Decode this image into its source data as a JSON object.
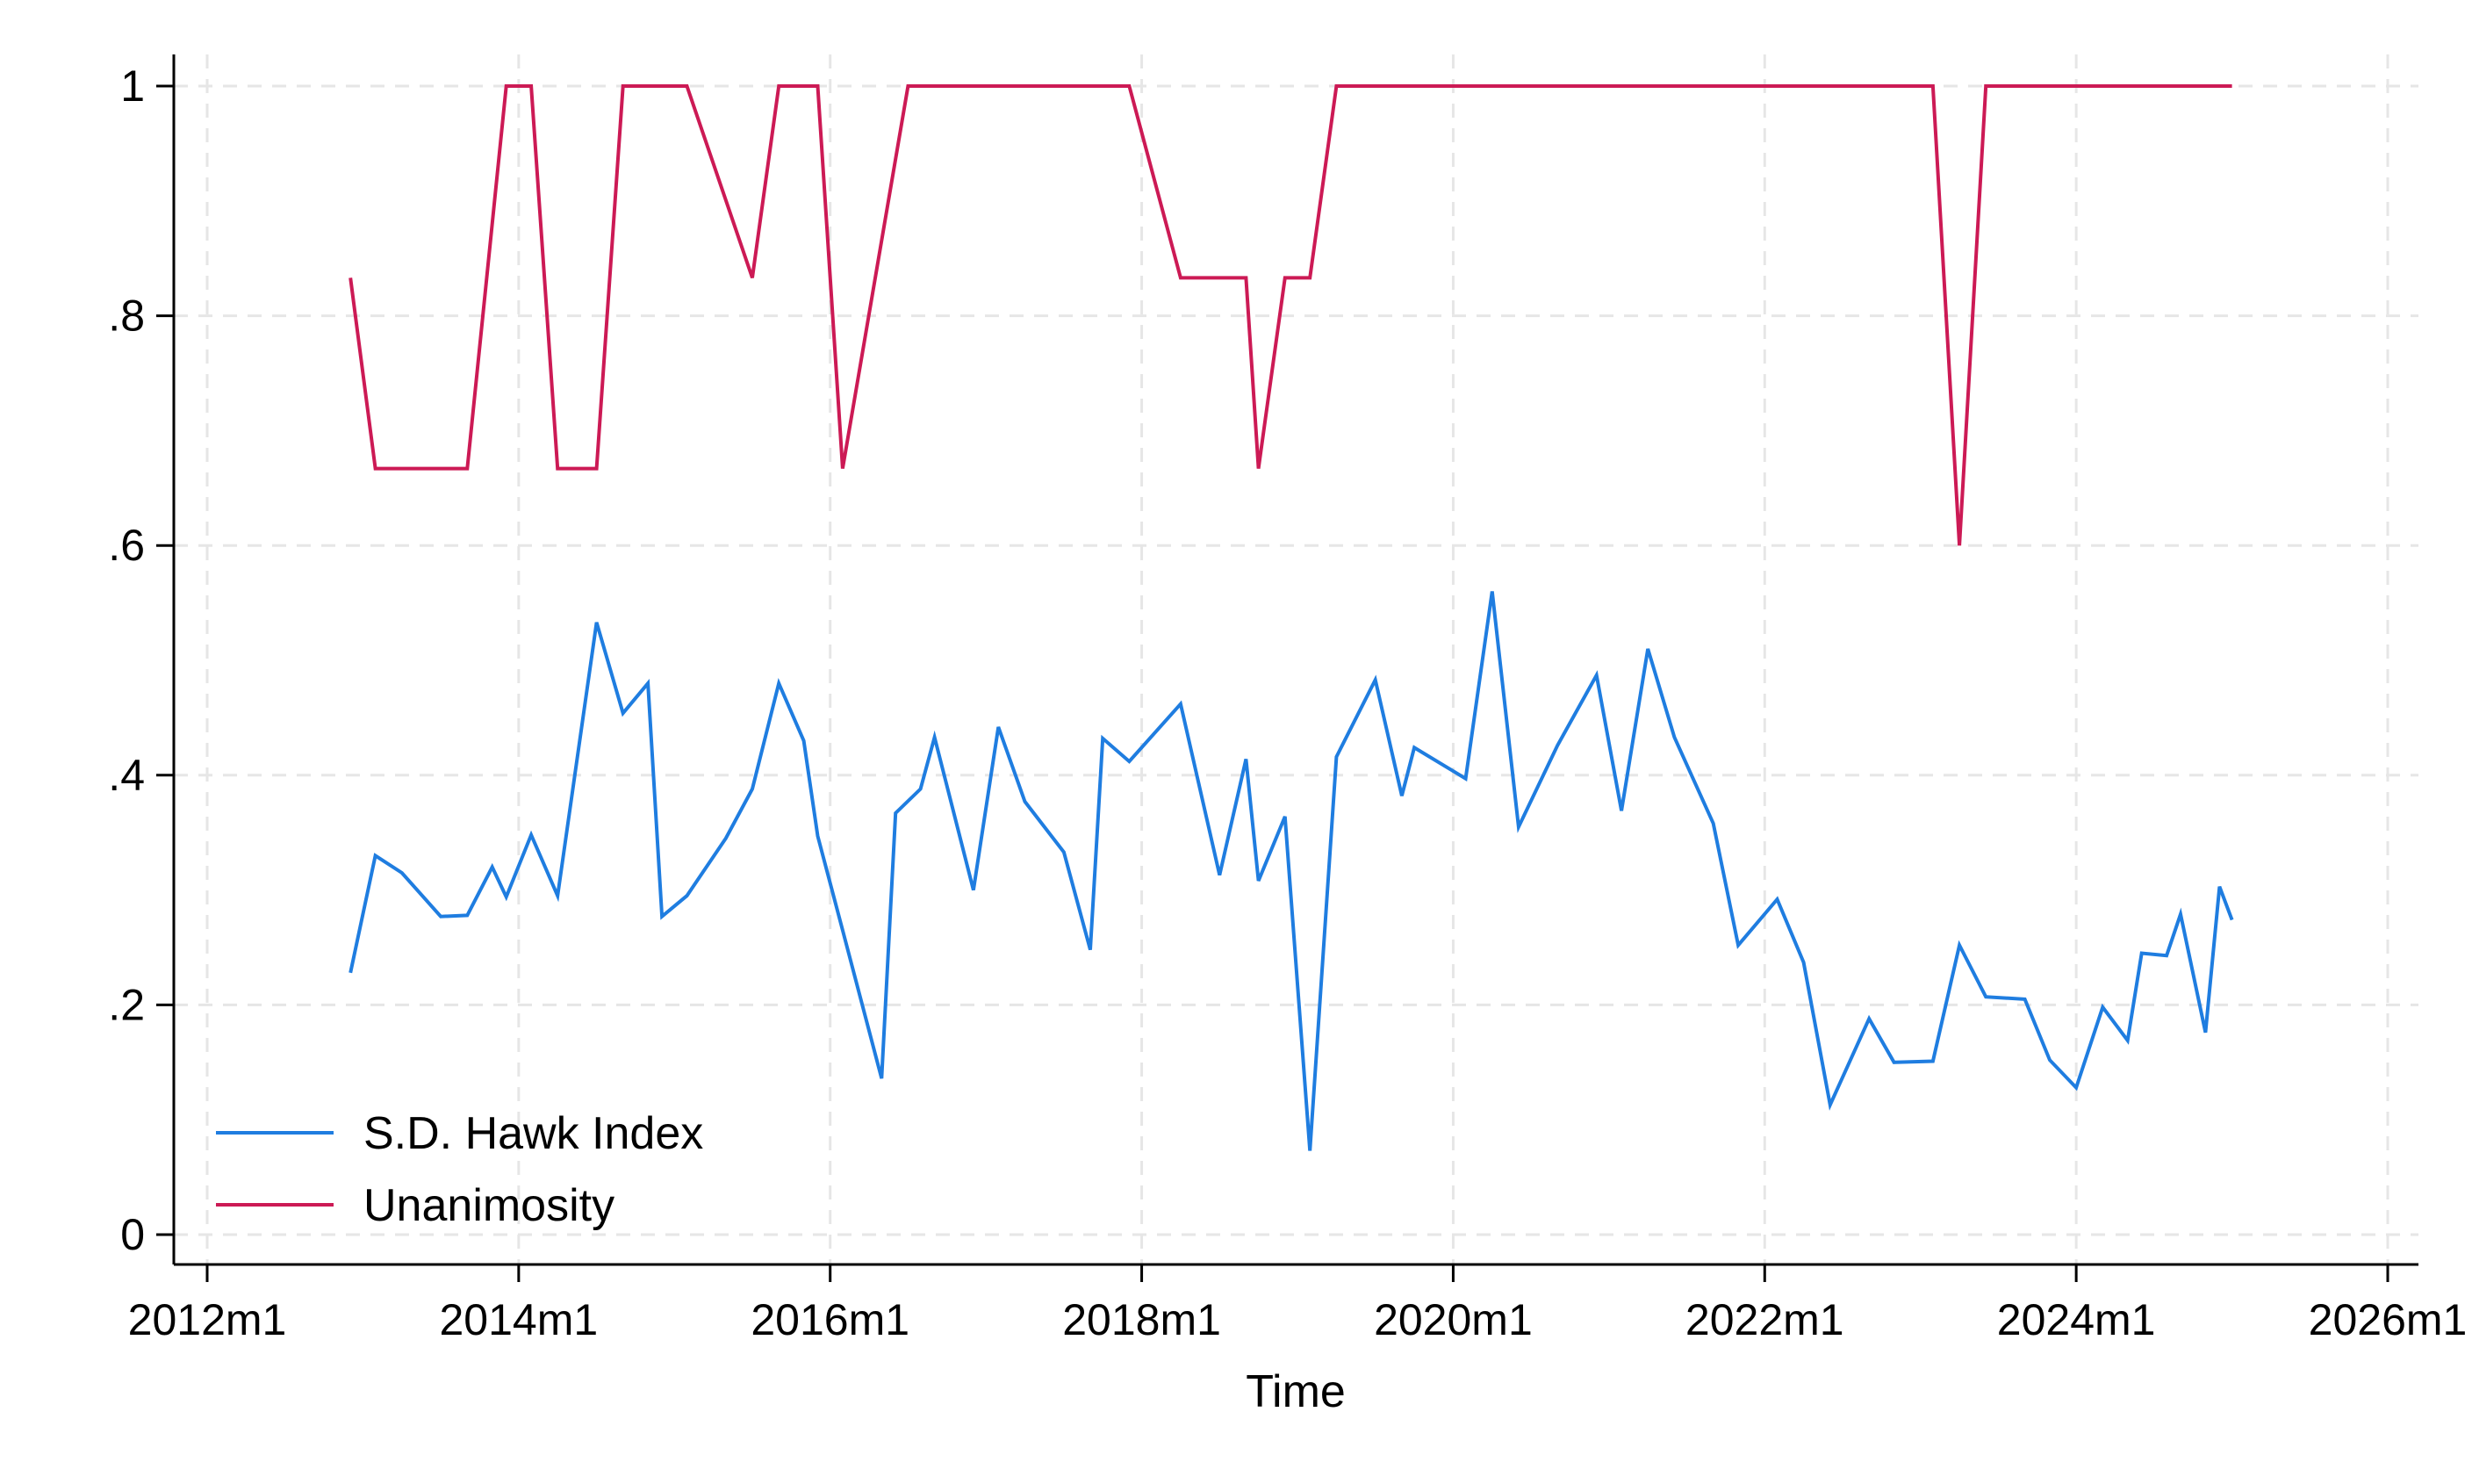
{
  "chart_data": {
    "type": "line",
    "xlabel": "Time",
    "ylabel": "",
    "xlim": [
      2012.0,
      2026.0
    ],
    "ylim": [
      0,
      1
    ],
    "x_ticks": [
      {
        "value": 2012,
        "label": "2012m1"
      },
      {
        "value": 2014,
        "label": "2014m1"
      },
      {
        "value": 2016,
        "label": "2016m1"
      },
      {
        "value": 2018,
        "label": "2018m1"
      },
      {
        "value": 2020,
        "label": "2020m1"
      },
      {
        "value": 2022,
        "label": "2022m1"
      },
      {
        "value": 2024,
        "label": "2024m1"
      },
      {
        "value": 2026,
        "label": "2026m1"
      }
    ],
    "y_ticks": [
      {
        "value": 0,
        "label": "0"
      },
      {
        "value": 0.2,
        "label": ".2"
      },
      {
        "value": 0.4,
        "label": ".4"
      },
      {
        "value": 0.6,
        "label": ".6"
      },
      {
        "value": 0.8,
        "label": ".8"
      },
      {
        "value": 1,
        "label": "1"
      }
    ],
    "grid": true,
    "legend_position": "bottom-left",
    "colors": {
      "hawk": "#1f7de0",
      "unanimosity": "#cc1a55",
      "grid": "#e6e6e6",
      "axis": "#000000"
    },
    "series": [
      {
        "name": "S.D. Hawk Index",
        "color": "#1f7de0",
        "x": [
          2012.92,
          2013.08,
          2013.25,
          2013.5,
          2013.67,
          2013.83,
          2013.92,
          2014.08,
          2014.25,
          2014.5,
          2014.67,
          2014.83,
          2014.92,
          2015.08,
          2015.33,
          2015.5,
          2015.67,
          2015.83,
          2015.92,
          2016.08,
          2016.33,
          2016.42,
          2016.58,
          2016.67,
          2016.92,
          2017.08,
          2017.25,
          2017.5,
          2017.67,
          2017.75,
          2017.92,
          2018.25,
          2018.5,
          2018.67,
          2018.75,
          2018.92,
          2019.08,
          2019.25,
          2019.5,
          2019.67,
          2019.75,
          2020.08,
          2020.25,
          2020.42,
          2020.67,
          2020.92,
          2021.08,
          2021.25,
          2021.42,
          2021.67,
          2021.83,
          2022.08,
          2022.25,
          2022.42,
          2022.67,
          2022.83,
          2023.08,
          2023.25,
          2023.42,
          2023.67,
          2023.83,
          2024.0,
          2024.17,
          2024.33,
          2024.42,
          2024.58,
          2024.67,
          2024.83,
          2024.92,
          2025.0
        ],
        "values": [
          0.228,
          0.33,
          0.315,
          0.277,
          0.278,
          0.32,
          0.294,
          0.348,
          0.295,
          0.533,
          0.454,
          0.48,
          0.277,
          0.295,
          0.345,
          0.388,
          0.48,
          0.43,
          0.347,
          0.265,
          0.136,
          0.367,
          0.388,
          0.433,
          0.3,
          0.442,
          0.377,
          0.333,
          0.248,
          0.432,
          0.412,
          0.462,
          0.313,
          0.414,
          0.308,
          0.364,
          0.073,
          0.416,
          0.483,
          0.382,
          0.424,
          0.397,
          0.56,
          0.355,
          0.426,
          0.487,
          0.369,
          0.51,
          0.433,
          0.358,
          0.252,
          0.292,
          0.237,
          0.113,
          0.188,
          0.15,
          0.151,
          0.252,
          0.207,
          0.205,
          0.152,
          0.128,
          0.198,
          0.169,
          0.245,
          0.243,
          0.279,
          0.176,
          0.303,
          0.274
        ]
      },
      {
        "name": "Unanimosity",
        "color": "#cc1a55",
        "x": [
          2012.92,
          2013.08,
          2013.67,
          2013.92,
          2014.08,
          2014.25,
          2014.5,
          2014.67,
          2015.08,
          2015.5,
          2015.67,
          2015.92,
          2016.08,
          2016.5,
          2017.92,
          2018.25,
          2018.67,
          2018.75,
          2018.92,
          2019.08,
          2019.25,
          2023.08,
          2023.25,
          2023.42,
          2025.0
        ],
        "values": [
          0.833,
          0.667,
          0.667,
          1.0,
          1.0,
          0.667,
          0.667,
          1.0,
          1.0,
          0.833,
          1.0,
          1.0,
          0.667,
          1.0,
          1.0,
          0.833,
          0.833,
          0.667,
          0.833,
          0.833,
          1.0,
          1.0,
          0.6,
          1.0,
          1.0
        ]
      }
    ]
  }
}
